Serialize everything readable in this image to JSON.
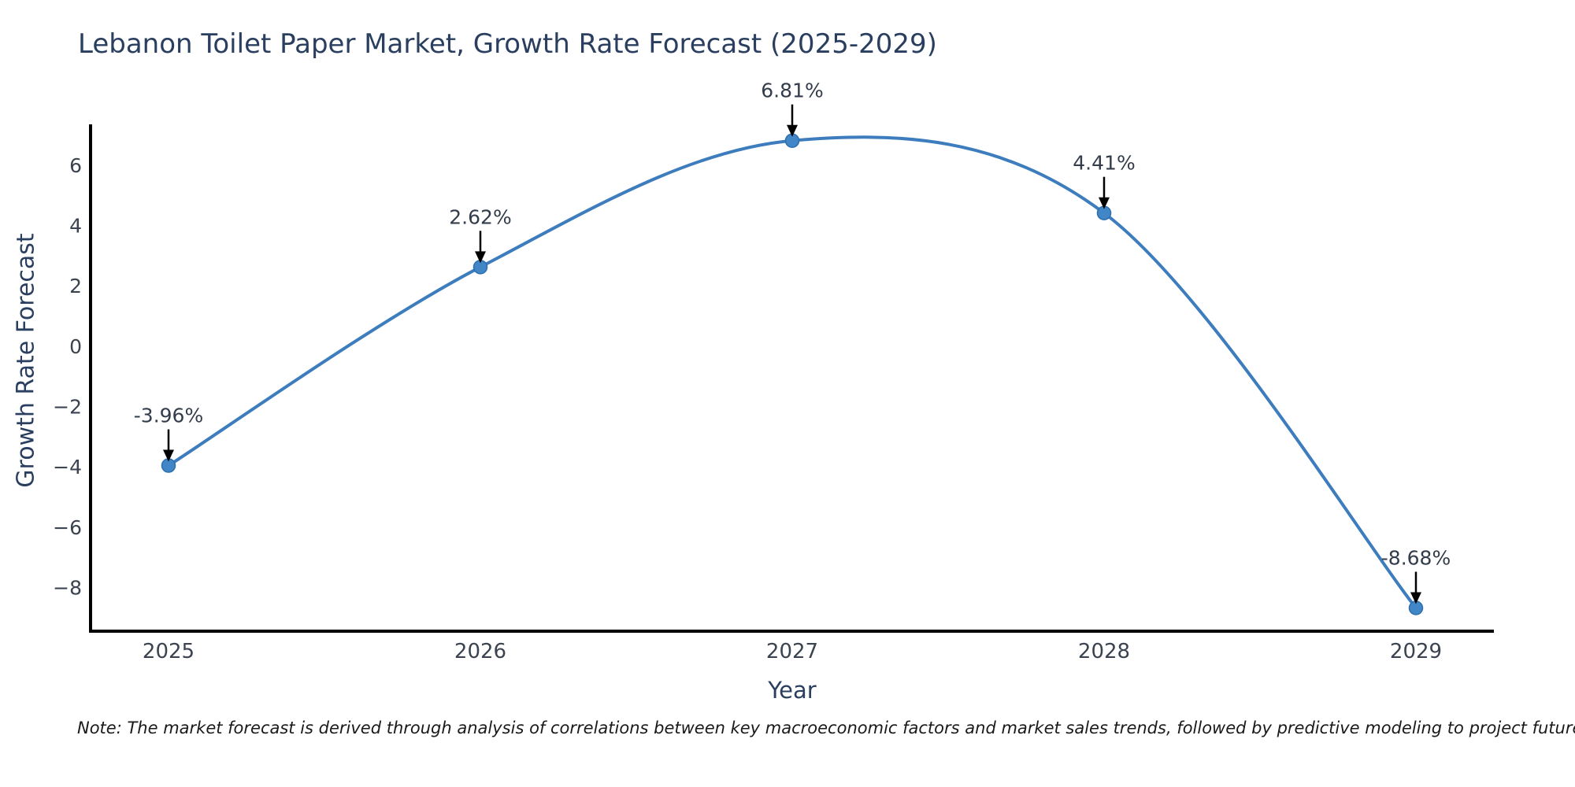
{
  "title": "Lebanon Toilet Paper Market, Growth Rate Forecast (2025-2029)",
  "note": "Note: The market forecast is derived through analysis of correlations between key macroeconomic factors and market sales trends, followed by predictive modeling to project future sales",
  "chart_data": {
    "type": "line",
    "title": "Lebanon Toilet Paper Market, Growth Rate Forecast (2025-2029)",
    "xlabel": "Year",
    "ylabel": "Growth Rate Forecast",
    "x": [
      2025,
      2026,
      2027,
      2028,
      2029
    ],
    "values": [
      -3.96,
      2.62,
      6.81,
      4.41,
      -8.68
    ],
    "point_labels": [
      "-3.96%",
      "2.62%",
      "6.81%",
      "4.41%",
      "-8.68%"
    ],
    "line_shape": "spline",
    "markers": true,
    "annotation_style": "value label with downward black arrow to each point",
    "xticks": [
      "2025",
      "2026",
      "2027",
      "2028",
      "2029"
    ],
    "yticks": [
      6,
      4,
      2,
      0,
      -2,
      -4,
      -6,
      -8
    ],
    "xlim": [
      2024.75,
      2029.25
    ],
    "ylim": [
      -9.45,
      7.35
    ],
    "grid": false,
    "legend": "none",
    "colors": {
      "line": "#3d7dbd",
      "marker_fill": "#4186c6",
      "marker_edge": "#2f6fae",
      "arrow": "#000000",
      "axis_line": "#000000",
      "title_text": "#2a3f5f",
      "axis_title_text": "#2a3f5f",
      "tick_text": "#3b4350",
      "annotation_text": "#333c4a",
      "background": "#ffffff"
    }
  }
}
